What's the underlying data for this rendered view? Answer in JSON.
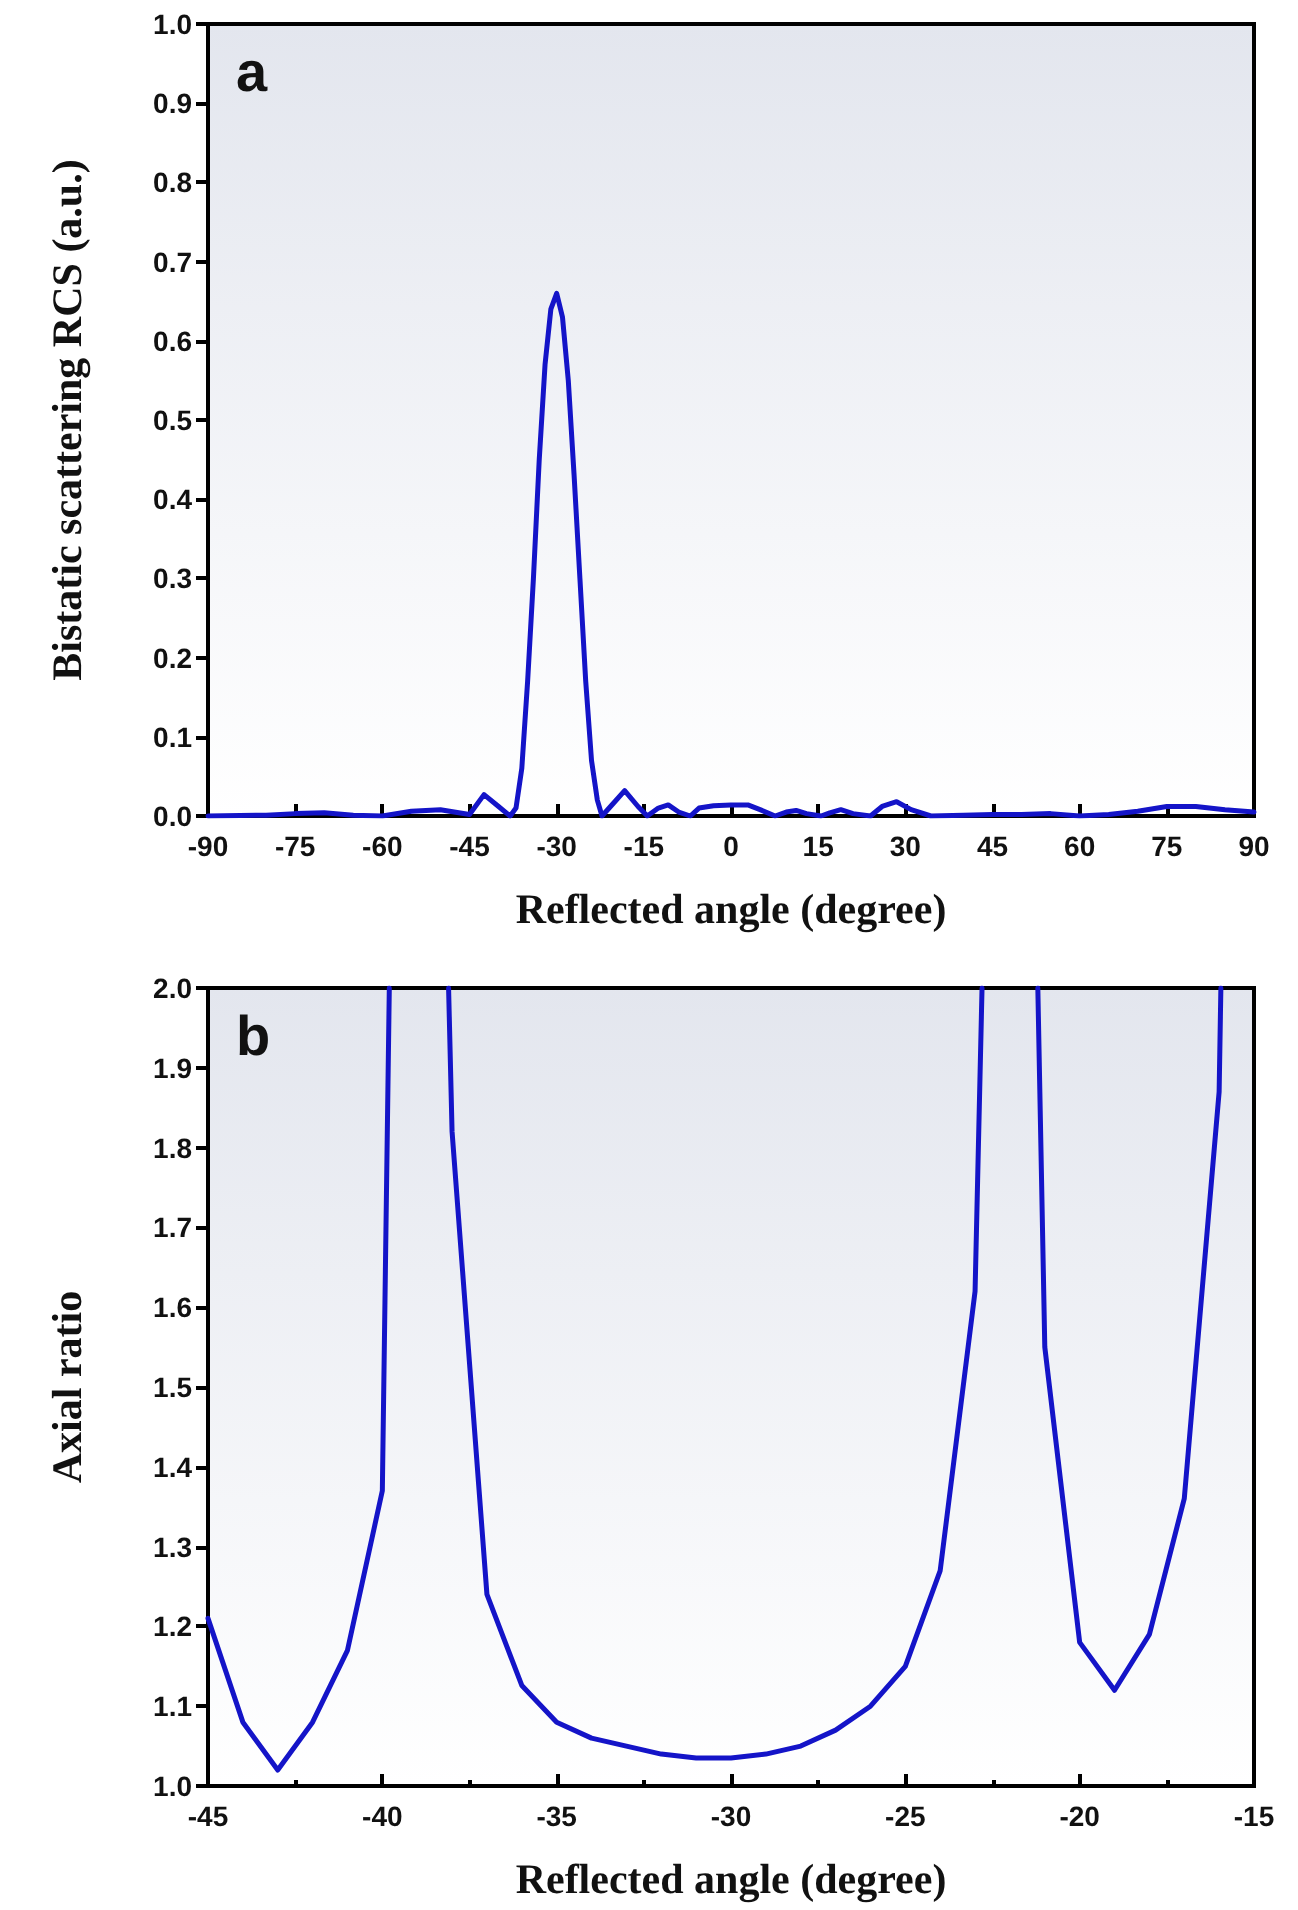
{
  "chart_data": [
    {
      "type": "line",
      "ylabel": "Bistatic scattering RCS (a.u.)",
      "xlabel": "Reflected angle (degree)",
      "annotations": [
        "a"
      ],
      "x": [
        -90,
        -80,
        -75,
        -70,
        -65,
        -60,
        -55,
        -50,
        -45,
        -42.5,
        -40,
        -38,
        -37,
        -36,
        -35,
        -34,
        -33,
        -32,
        -31,
        -30,
        -29,
        -28,
        -27,
        -26,
        -25,
        -24,
        -23,
        -22.2,
        -20,
        -18.3,
        -16,
        -14.4,
        -12.5,
        -10.8,
        -9,
        -7,
        -5.5,
        -3,
        0,
        2.9,
        5,
        7.6,
        9.5,
        11.2,
        13,
        15.5,
        17,
        18.9,
        21,
        24,
        26,
        28.5,
        31,
        34.4,
        40,
        45,
        50,
        55,
        60,
        65,
        70,
        75,
        80,
        85,
        90
      ],
      "series": [
        {
          "color": "#1414c8",
          "values": [
            0,
            0.001,
            0.003,
            0.004,
            0.001,
            0,
            0.006,
            0.008,
            0.002,
            0.027,
            0.012,
            0,
            0.01,
            0.06,
            0.17,
            0.3,
            0.45,
            0.57,
            0.64,
            0.66,
            0.63,
            0.55,
            0.43,
            0.3,
            0.17,
            0.07,
            0.02,
            0,
            0.018,
            0.032,
            0.012,
            0,
            0.01,
            0.014,
            0.005,
            0,
            0.01,
            0.013,
            0.014,
            0.014,
            0.008,
            0,
            0.005,
            0.007,
            0.003,
            0,
            0.004,
            0.008,
            0.003,
            0,
            0.012,
            0.018,
            0.008,
            0,
            0.001,
            0.002,
            0.002,
            0.003,
            0,
            0.002,
            0.006,
            0.012,
            0.012,
            0.008,
            0.005
          ]
        }
      ],
      "xlim": [
        -90,
        90
      ],
      "xticks": [
        -90,
        -75,
        -60,
        -45,
        -30,
        -15,
        0,
        15,
        30,
        45,
        60,
        75,
        90
      ],
      "ylim": [
        0,
        1
      ],
      "yticks": [
        {
          "value": 0,
          "label": "0.0"
        },
        0.1,
        0.2,
        0.3,
        0.4,
        0.5,
        0.6,
        0.7,
        0.8,
        0.9,
        {
          "value": 1,
          "label": "1.0"
        }
      ],
      "marker": "none",
      "line_style": "solid"
    },
    {
      "type": "line",
      "ylabel": "Axial ratio",
      "xlabel": "Reflected angle (degree)",
      "annotations": [
        "b"
      ],
      "x": [
        -45,
        -44,
        -43,
        -42,
        -41,
        -40,
        -39.8,
        -39,
        -38.1,
        -38,
        -37,
        -36,
        -35,
        -34,
        -33,
        -32,
        -31,
        -30,
        -29,
        -28,
        -27,
        -26,
        -25,
        -24,
        -23,
        -22.8,
        -22,
        -21.2,
        -21,
        -20,
        -19,
        -18,
        -17,
        -16,
        -15.95
      ],
      "series": [
        {
          "color": "#1414c8",
          "values": [
            1.21,
            1.08,
            1.02,
            1.08,
            1.17,
            1.37,
            2.0,
            null,
            2.0,
            1.82,
            1.24,
            1.126,
            1.08,
            1.06,
            1.05,
            1.04,
            1.035,
            1.035,
            1.04,
            1.05,
            1.07,
            1.1,
            1.15,
            1.27,
            1.62,
            2.0,
            null,
            2.0,
            1.55,
            1.18,
            1.12,
            1.19,
            1.36,
            1.87,
            2.0
          ]
        }
      ],
      "xlim": [
        -45,
        -15
      ],
      "xticks": [
        -45,
        -40,
        -35,
        -30,
        -25,
        -20,
        -15
      ],
      "ylim": [
        1,
        2
      ],
      "yticks": [
        {
          "value": 1,
          "label": "1.0"
        },
        1.1,
        1.2,
        1.3,
        1.4,
        1.5,
        1.6,
        1.7,
        1.8,
        1.9,
        {
          "value": 2,
          "label": "2.0"
        }
      ],
      "marker": "none",
      "line_style": "solid"
    }
  ]
}
